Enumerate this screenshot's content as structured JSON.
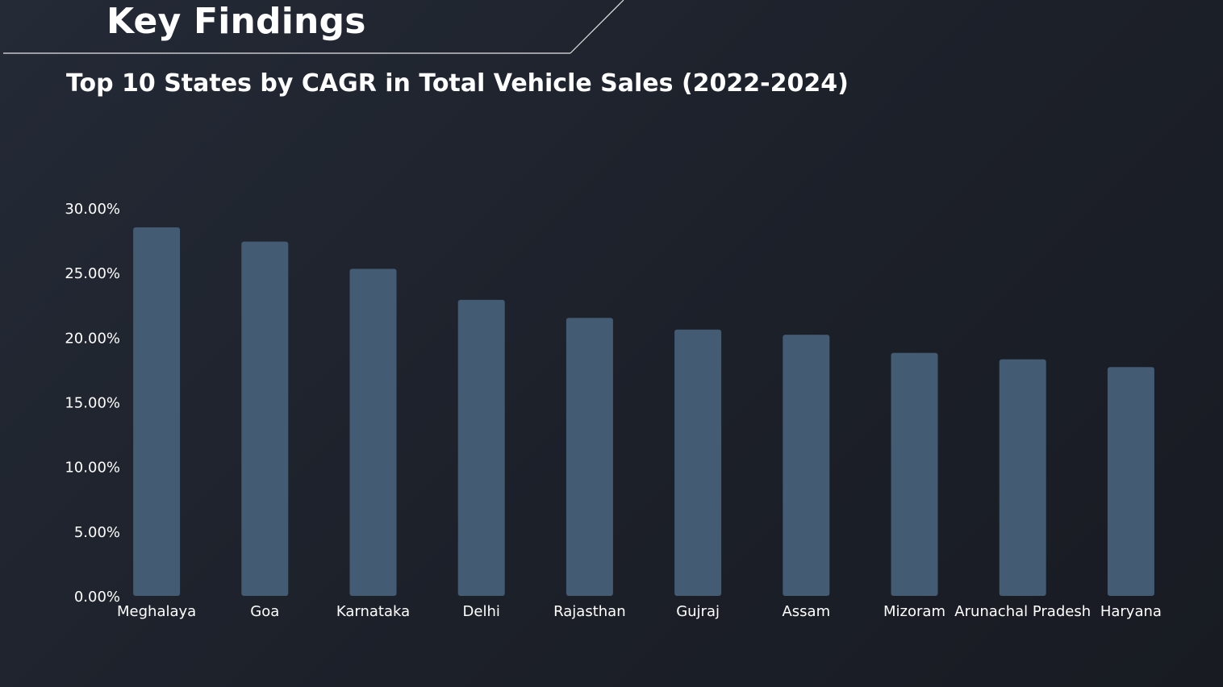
{
  "header": {
    "title": "Key Findings"
  },
  "colors": {
    "background": "#1f232c",
    "bar": "#435b73",
    "text": "#ffffff",
    "divider": "#e6e6e6"
  },
  "chart_data": {
    "type": "bar",
    "title": "Top 10 States by CAGR in Total Vehicle Sales (2022-2024)",
    "xlabel": "",
    "ylabel": "",
    "categories": [
      "Meghalaya",
      "Goa",
      "Karnataka",
      "Delhi",
      "Rajasthan",
      "Gujraj",
      "Assam",
      "Mizoram",
      "Arunachal Pradesh",
      "Haryana"
    ],
    "values": [
      28.5,
      27.4,
      25.3,
      22.9,
      21.5,
      20.6,
      20.2,
      18.8,
      18.3,
      17.7
    ],
    "yticks": [
      "0.00%",
      "5.00%",
      "10.00%",
      "15.00%",
      "20.00%",
      "25.00%",
      "30.00%"
    ],
    "ylim": [
      0,
      30
    ],
    "grid": false,
    "legend": "none"
  }
}
